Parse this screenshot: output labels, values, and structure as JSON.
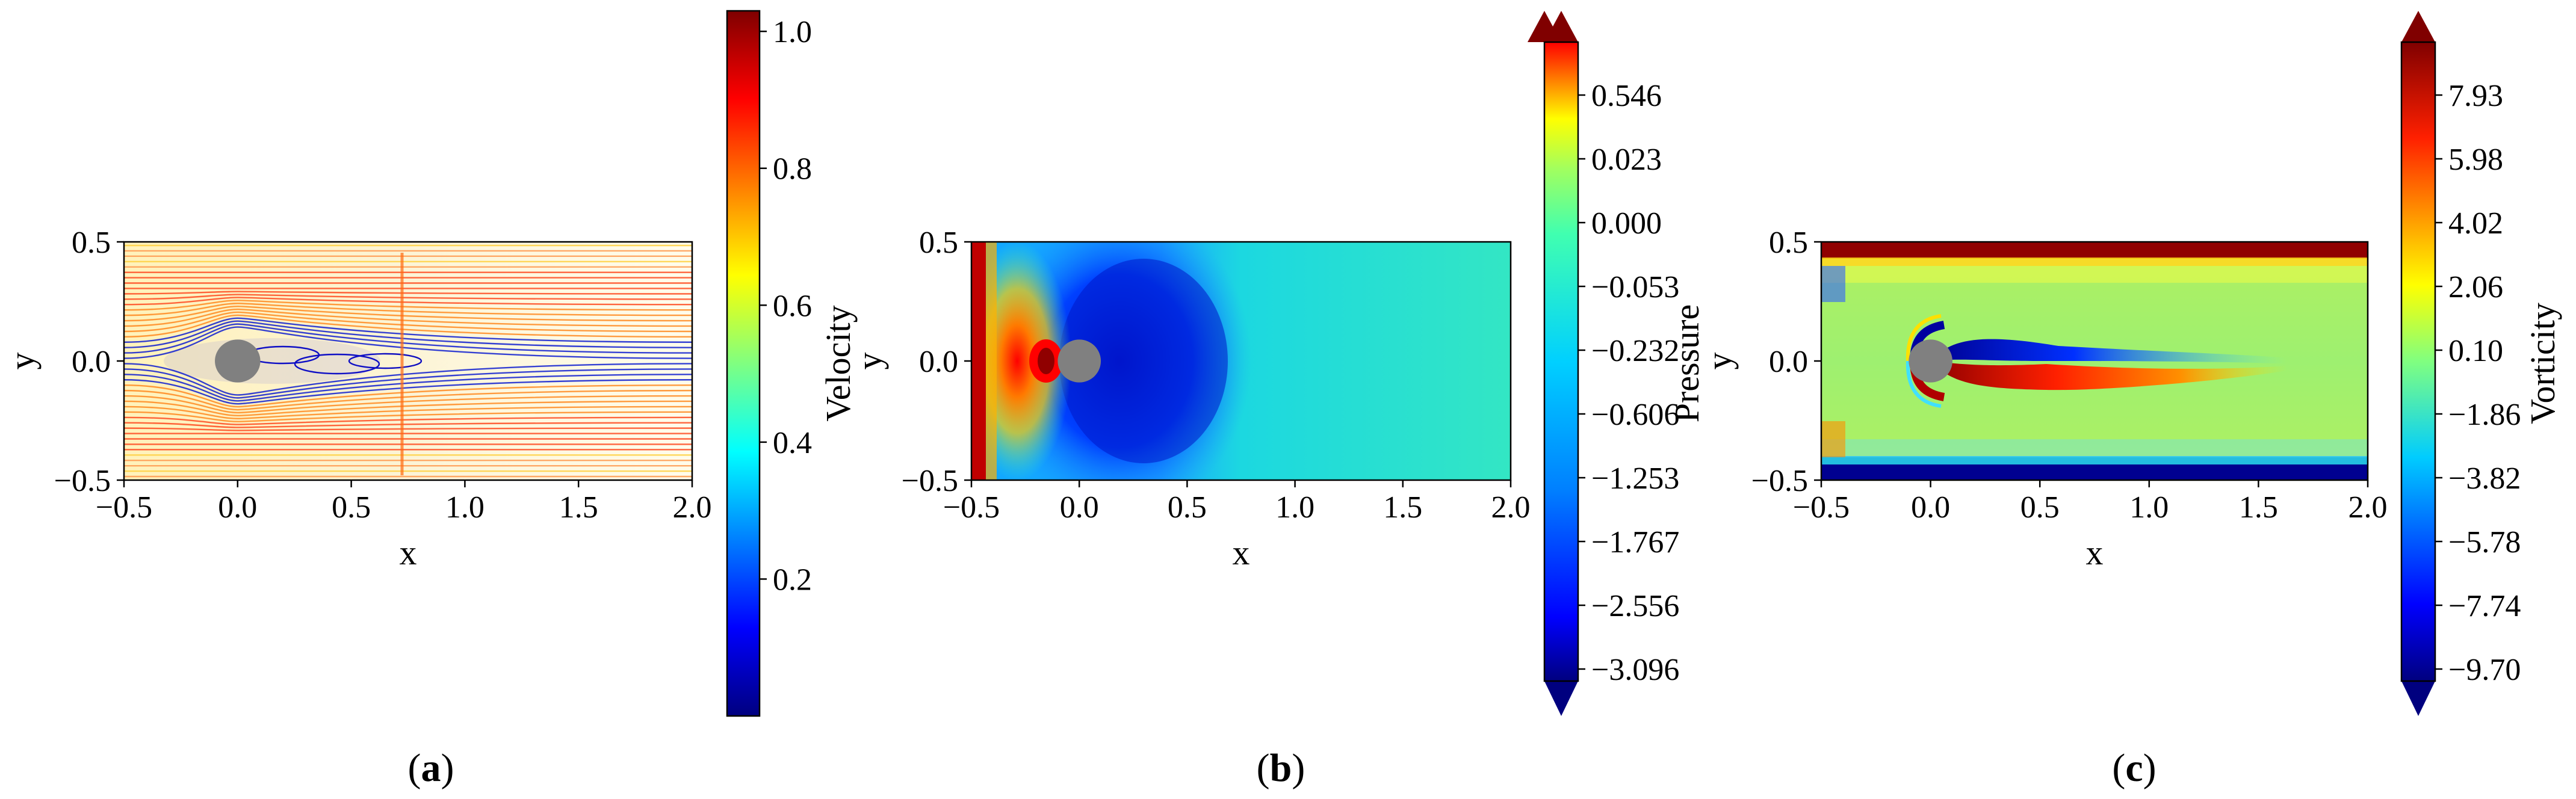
{
  "figure": {
    "captions": [
      {
        "open": "(",
        "letter": "a",
        "close": ")"
      },
      {
        "open": "(",
        "letter": "b",
        "close": ")"
      },
      {
        "open": "(",
        "letter": "c",
        "close": ")"
      }
    ]
  },
  "chart_data": [
    {
      "type": "heatmap",
      "subtype": "streamline velocity field",
      "xlabel": "x",
      "ylabel": "y",
      "xlim": [
        -0.5,
        2.0
      ],
      "ylim": [
        -0.5,
        0.5
      ],
      "xticks": [
        "−0.5",
        "0.0",
        "0.5",
        "1.0",
        "1.5",
        "2.0"
      ],
      "xtick_values": [
        -0.5,
        0.0,
        0.5,
        1.0,
        1.5,
        2.0
      ],
      "yticks": [
        "0.5",
        "0.0",
        "−0.5"
      ],
      "ytick_values": [
        0.5,
        0.0,
        -0.5
      ],
      "obstacle": {
        "cx": 0.0,
        "cy": 0.0,
        "rx": 0.1,
        "ry": 0.1,
        "color": "#808080"
      },
      "colorbar": {
        "label": "Velocity",
        "ticks": [
          "1.0",
          "0.8",
          "0.6",
          "0.4",
          "0.2"
        ],
        "tick_values": [
          1.0,
          0.8,
          0.6,
          0.4,
          0.2
        ],
        "range": [
          0.0,
          1.03
        ],
        "extend": "none",
        "colormap": "jet"
      }
    },
    {
      "type": "heatmap",
      "subtype": "pressure contour",
      "xlabel": "x",
      "ylabel": "y",
      "xlim": [
        -0.5,
        2.0
      ],
      "ylim": [
        -0.5,
        0.5
      ],
      "xticks": [
        "−0.5",
        "0.0",
        "0.5",
        "1.0",
        "1.5",
        "2.0"
      ],
      "xtick_values": [
        -0.5,
        0.0,
        0.5,
        1.0,
        1.5,
        2.0
      ],
      "yticks": [
        "0.5",
        "0.0",
        "−0.5"
      ],
      "ytick_values": [
        0.5,
        0.0,
        -0.5
      ],
      "obstacle": {
        "cx": 0.0,
        "cy": 0.0,
        "rx": 0.1,
        "ry": 0.1,
        "color": "#808080"
      },
      "colorbar": {
        "label": "Pressure",
        "ticks": [
          "0.546",
          "0.023",
          "0.000",
          "−0.053",
          "−0.232",
          "−0.606",
          "−1.253",
          "−1.767",
          "−2.556",
          "−3.096"
        ],
        "extend": "both",
        "colormap": "jet"
      }
    },
    {
      "type": "heatmap",
      "subtype": "vorticity contour",
      "xlabel": "x",
      "ylabel": "y",
      "xlim": [
        -0.5,
        2.0
      ],
      "ylim": [
        -0.5,
        0.5
      ],
      "xticks": [
        "−0.5",
        "0.0",
        "0.5",
        "1.0",
        "1.5",
        "2.0"
      ],
      "xtick_values": [
        -0.5,
        0.0,
        0.5,
        1.0,
        1.5,
        2.0
      ],
      "yticks": [
        "0.5",
        "0.0",
        "−0.5"
      ],
      "ytick_values": [
        0.5,
        0.0,
        -0.5
      ],
      "obstacle": {
        "cx": 0.0,
        "cy": 0.0,
        "rx": 0.1,
        "ry": 0.1,
        "color": "#808080"
      },
      "colorbar": {
        "label": "Vorticity",
        "ticks": [
          "7.93",
          "5.98",
          "4.02",
          "2.06",
          "0.10",
          "−1.86",
          "−3.82",
          "−5.78",
          "−7.74",
          "−9.70"
        ],
        "extend": "both",
        "colormap": "jet"
      }
    }
  ]
}
